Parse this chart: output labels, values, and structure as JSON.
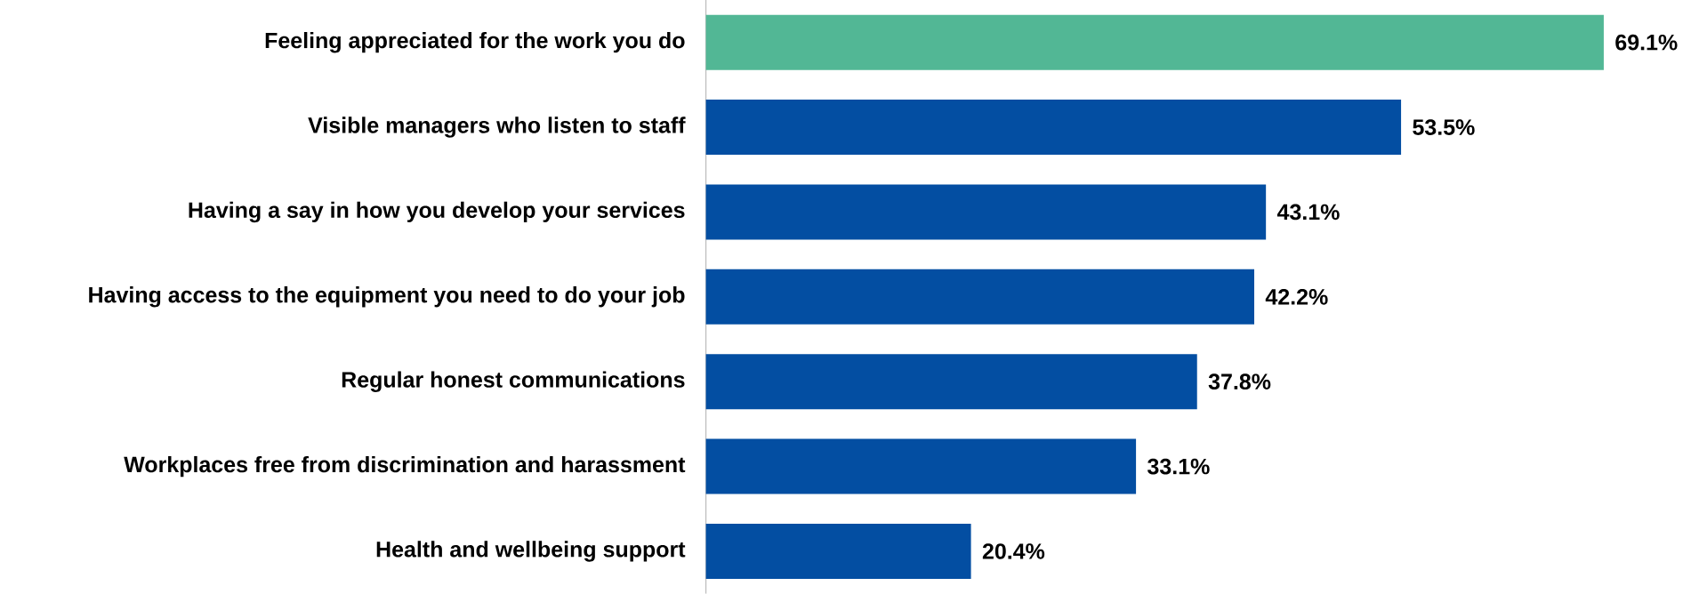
{
  "chart_data": {
    "type": "bar",
    "orientation": "horizontal",
    "categories": [
      "Feeling appreciated for the work you do",
      "Visible managers who listen to staff",
      "Having a say in how you develop your services",
      "Having access to the equipment you need to do your job",
      "Regular honest communications",
      "Workplaces free from discrimination and harassment",
      "Health and wellbeing support"
    ],
    "values": [
      69.1,
      53.5,
      43.1,
      42.2,
      37.8,
      33.1,
      20.4
    ],
    "value_labels": [
      "69.1%",
      "53.5%",
      "43.1%",
      "42.2%",
      "37.8%",
      "33.1%",
      "20.4%"
    ],
    "colors": [
      "#52b795",
      "#034ea2",
      "#034ea2",
      "#034ea2",
      "#034ea2",
      "#034ea2",
      "#034ea2"
    ],
    "tick_labels": "y"
  }
}
